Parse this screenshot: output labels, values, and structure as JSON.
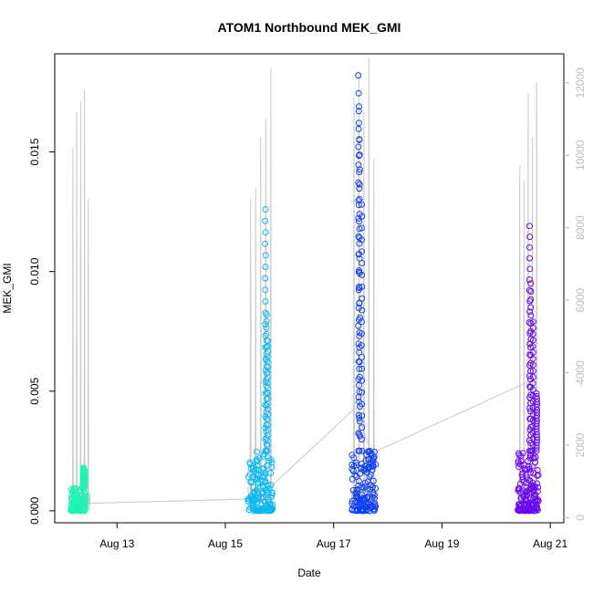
{
  "chart_data": {
    "type": "scatter",
    "title": "ATOM1 Northbound MEK_GMI",
    "xlabel": "Date",
    "ylabel": "MEK_GMI",
    "x_ticks": [
      "Aug 13",
      "Aug 15",
      "Aug 17",
      "Aug 19",
      "Aug 21"
    ],
    "x_tick_days": [
      13,
      15,
      17,
      19,
      21
    ],
    "xlim_days": [
      11.85,
      21.25
    ],
    "y_ticks": [
      "0.000",
      "0.005",
      "0.010",
      "0.015"
    ],
    "y_tick_values": [
      0,
      0.005,
      0.01,
      0.015
    ],
    "ylim": [
      -0.0005,
      0.0191
    ],
    "y2_ticks": [
      "0",
      "2000",
      "4000",
      "6000",
      "8000",
      "10000",
      "12000"
    ],
    "y2_tick_values": [
      0,
      2000,
      4000,
      6000,
      8000,
      10000,
      12000
    ],
    "y2lim": [
      -140,
      12800
    ],
    "secondary_series_color": "#c8c8c8",
    "series": [
      {
        "color": "#1df5b4",
        "day_range": [
          12.15,
          12.42
        ],
        "base_max": 0.001,
        "spike_days": [
          12.38,
          12.4
        ],
        "spikes": [
          0.0018,
          0.0017
        ]
      },
      {
        "color": "#0ab9f3",
        "day_range": [
          15.42,
          15.88
        ],
        "base_max": 0.0025,
        "spike_days": [
          15.74,
          15.76,
          15.78
        ],
        "spikes": [
          0.0126,
          0.0082,
          0.0071
        ]
      },
      {
        "color": "#1040f5",
        "day_range": [
          17.33,
          17.78
        ],
        "base_max": 0.0025,
        "spike_days": [
          17.46,
          17.47,
          17.48,
          17.52
        ],
        "spikes": [
          0.0182,
          0.0169,
          0.0155,
          0.0128
        ]
      },
      {
        "color": "#6a0af5",
        "day_range": [
          20.4,
          20.78
        ],
        "base_max": 0.0025,
        "spike_days": [
          20.62,
          20.64,
          20.68,
          20.75
        ],
        "spikes": [
          0.0119,
          0.0095,
          0.0079,
          0.0049
        ]
      }
    ],
    "connector": {
      "days": [
        12.3,
        15.6,
        17.4,
        17.7,
        20.6
      ],
      "values": [
        0.0003,
        0.0005,
        0.0043,
        0.0024,
        0.0054
      ]
    },
    "secondary_bursts": [
      {
        "day_range": [
          12.15,
          12.5
        ],
        "peaks": [
          10200,
          11200,
          11500,
          11800,
          8800
        ]
      },
      {
        "day_range": [
          15.42,
          15.88
        ],
        "peaks": [
          8800,
          9100,
          10500,
          11000,
          12400
        ]
      },
      {
        "day_range": [
          17.33,
          17.78
        ],
        "peaks": [
          11600,
          12300,
          11200,
          12700,
          9900
        ]
      },
      {
        "day_range": [
          20.4,
          20.78
        ],
        "peaks": [
          9700,
          9300,
          11700,
          10500,
          12000
        ]
      }
    ]
  }
}
